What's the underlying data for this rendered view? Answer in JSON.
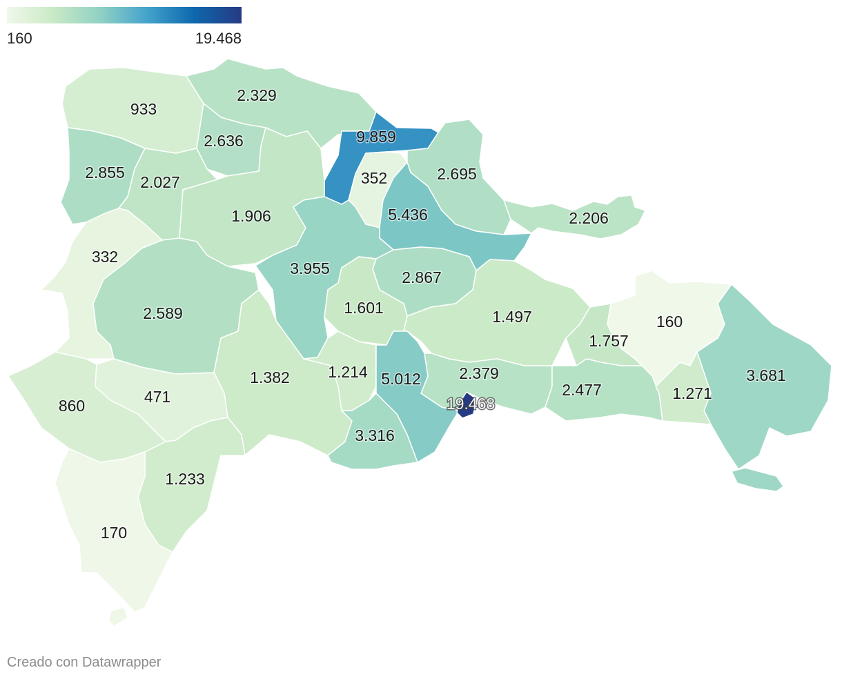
{
  "legend": {
    "min_label": "160",
    "max_label": "19.468",
    "min": 160,
    "max": 19468,
    "colors": [
      "#f0f8ea",
      "#c9e9c6",
      "#8fd1c4",
      "#43a2cb",
      "#0d67ad",
      "#263a83"
    ]
  },
  "map_data": {
    "regions": [
      {
        "label": "933",
        "value": 933
      },
      {
        "label": "2.329",
        "value": 2329
      },
      {
        "label": "2.636",
        "value": 2636
      },
      {
        "label": "9.859",
        "value": 9859
      },
      {
        "label": "2.855",
        "value": 2855
      },
      {
        "label": "2.027",
        "value": 2027
      },
      {
        "label": "352",
        "value": 352
      },
      {
        "label": "2.695",
        "value": 2695
      },
      {
        "label": "1.906",
        "value": 1906
      },
      {
        "label": "5.436",
        "value": 5436
      },
      {
        "label": "2.206",
        "value": 2206
      },
      {
        "label": "332",
        "value": 332
      },
      {
        "label": "3.955",
        "value": 3955
      },
      {
        "label": "2.867",
        "value": 2867
      },
      {
        "label": "2.589",
        "value": 2589
      },
      {
        "label": "1.601",
        "value": 1601
      },
      {
        "label": "1.497",
        "value": 1497
      },
      {
        "label": "160",
        "value": 160
      },
      {
        "label": "1.757",
        "value": 1757
      },
      {
        "label": "3.681",
        "value": 3681
      },
      {
        "label": "1.382",
        "value": 1382
      },
      {
        "label": "1.214",
        "value": 1214
      },
      {
        "label": "5.012",
        "value": 5012
      },
      {
        "label": "2.379",
        "value": 2379
      },
      {
        "label": "860",
        "value": 860
      },
      {
        "label": "471",
        "value": 471
      },
      {
        "label": "19.468",
        "value": 19468
      },
      {
        "label": "2.477",
        "value": 2477
      },
      {
        "label": "1.271",
        "value": 1271
      },
      {
        "label": "3.316",
        "value": 3316
      },
      {
        "label": "1.233",
        "value": 1233
      },
      {
        "label": "170",
        "value": 170
      }
    ]
  },
  "footer": {
    "credit": "Creado con Datawrapper"
  }
}
